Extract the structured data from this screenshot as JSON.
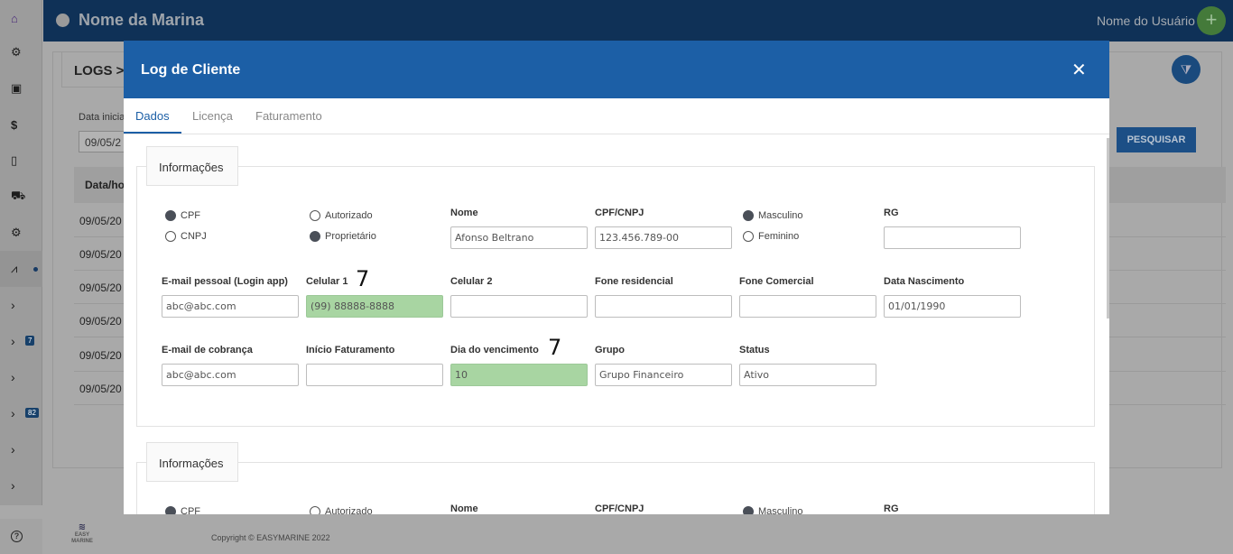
{
  "app": {
    "marina_name": "Nome da Marina",
    "user_name": "Nome do Usuário",
    "plus_label": "+",
    "logs_title": "LOGS >",
    "date_label": "Data inicia",
    "date_value": "09/05/2",
    "search_label": "PESQUISAR",
    "table_header": "Data/ho",
    "rows": [
      "09/05/20",
      "09/05/20",
      "09/05/20",
      "09/05/20",
      "09/05/20",
      "09/05/20"
    ],
    "badges": [
      "7",
      "82"
    ],
    "footer_logo": "EASY MARINE",
    "copyright": "Copyright © EASYMARINE 2022"
  },
  "modal": {
    "title": "Log de Cliente",
    "close_label": "✕",
    "tabs": [
      "Dados",
      "Licença",
      "Faturamento"
    ],
    "section_title": "Informações",
    "radios": {
      "cpf": "CPF",
      "cnpj": "CNPJ",
      "autorizado": "Autorizado",
      "proprietario": "Proprietário",
      "masculino": "Masculino",
      "feminino": "Feminino"
    },
    "labels": {
      "nome": "Nome",
      "cpf_cnpj": "CPF/CNPJ",
      "rg": "RG",
      "email_pessoal": "E-mail pessoal (Login app)",
      "celular1": "Celular 1",
      "celular2": "Celular 2",
      "fone_residencial": "Fone residencial",
      "fone_comercial": "Fone Comercial",
      "data_nascimento": "Data Nascimento",
      "email_cobranca": "E-mail de cobrança",
      "inicio_faturamento": "Início Faturamento",
      "dia_vencimento": "Dia do vencimento",
      "grupo": "Grupo",
      "status": "Status"
    },
    "values": {
      "nome": "Afonso Beltrano",
      "cpf_cnpj": "123.456.789-00",
      "rg": "",
      "email_pessoal": "abc@abc.com",
      "celular1": "(99) 88888-8888",
      "celular2": "",
      "fone_residencial": "",
      "fone_comercial": "",
      "data_nascimento": "01/01/1990",
      "email_cobranca": "abc@abc.com",
      "inicio_faturamento": "",
      "dia_vencimento": "10",
      "grupo": "Grupo Financeiro",
      "status": "Ativo"
    },
    "change_marker": "7"
  },
  "icons": [
    "home-icon",
    "gear-icon",
    "camera-icon",
    "dollar-icon",
    "document-icon",
    "cart-icon",
    "settings-icon",
    "chart-icon",
    "chevron-right-icon",
    "help-icon",
    "filter-icon",
    "close-icon"
  ]
}
